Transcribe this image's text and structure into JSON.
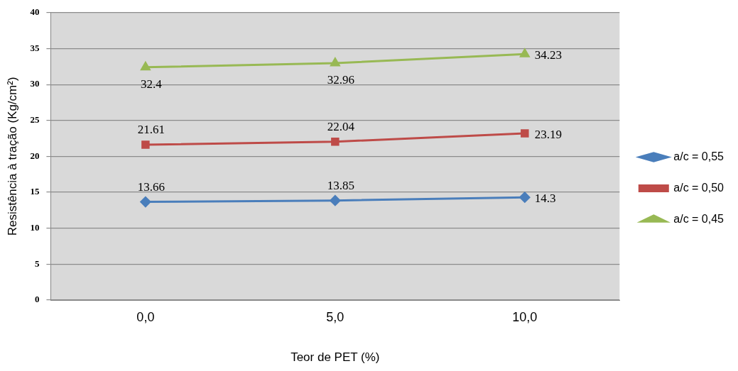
{
  "chart_data": {
    "type": "line",
    "xlabel": "Teor de PET (%)",
    "ylabel": "Resistência à tração (Kg/cm²)",
    "categories": [
      "0,0",
      "5,0",
      "10,0"
    ],
    "series": [
      {
        "name": "a/c = 0,55",
        "color": "#4a7ebb",
        "marker": "diamond",
        "values": [
          13.66,
          13.85,
          14.3
        ]
      },
      {
        "name": "a/c = 0,50",
        "color": "#be4b48",
        "marker": "square",
        "values": [
          21.61,
          22.04,
          23.19
        ]
      },
      {
        "name": "a/c = 0,45",
        "color": "#98b954",
        "marker": "triangle",
        "values": [
          32.4,
          32.96,
          34.23
        ]
      }
    ],
    "ylim": [
      0,
      40
    ],
    "yticks": [
      0,
      5,
      10,
      15,
      20,
      25,
      30,
      35,
      40
    ],
    "grid": "y",
    "legend": "right",
    "data_labels": true,
    "line_style": "solid"
  }
}
